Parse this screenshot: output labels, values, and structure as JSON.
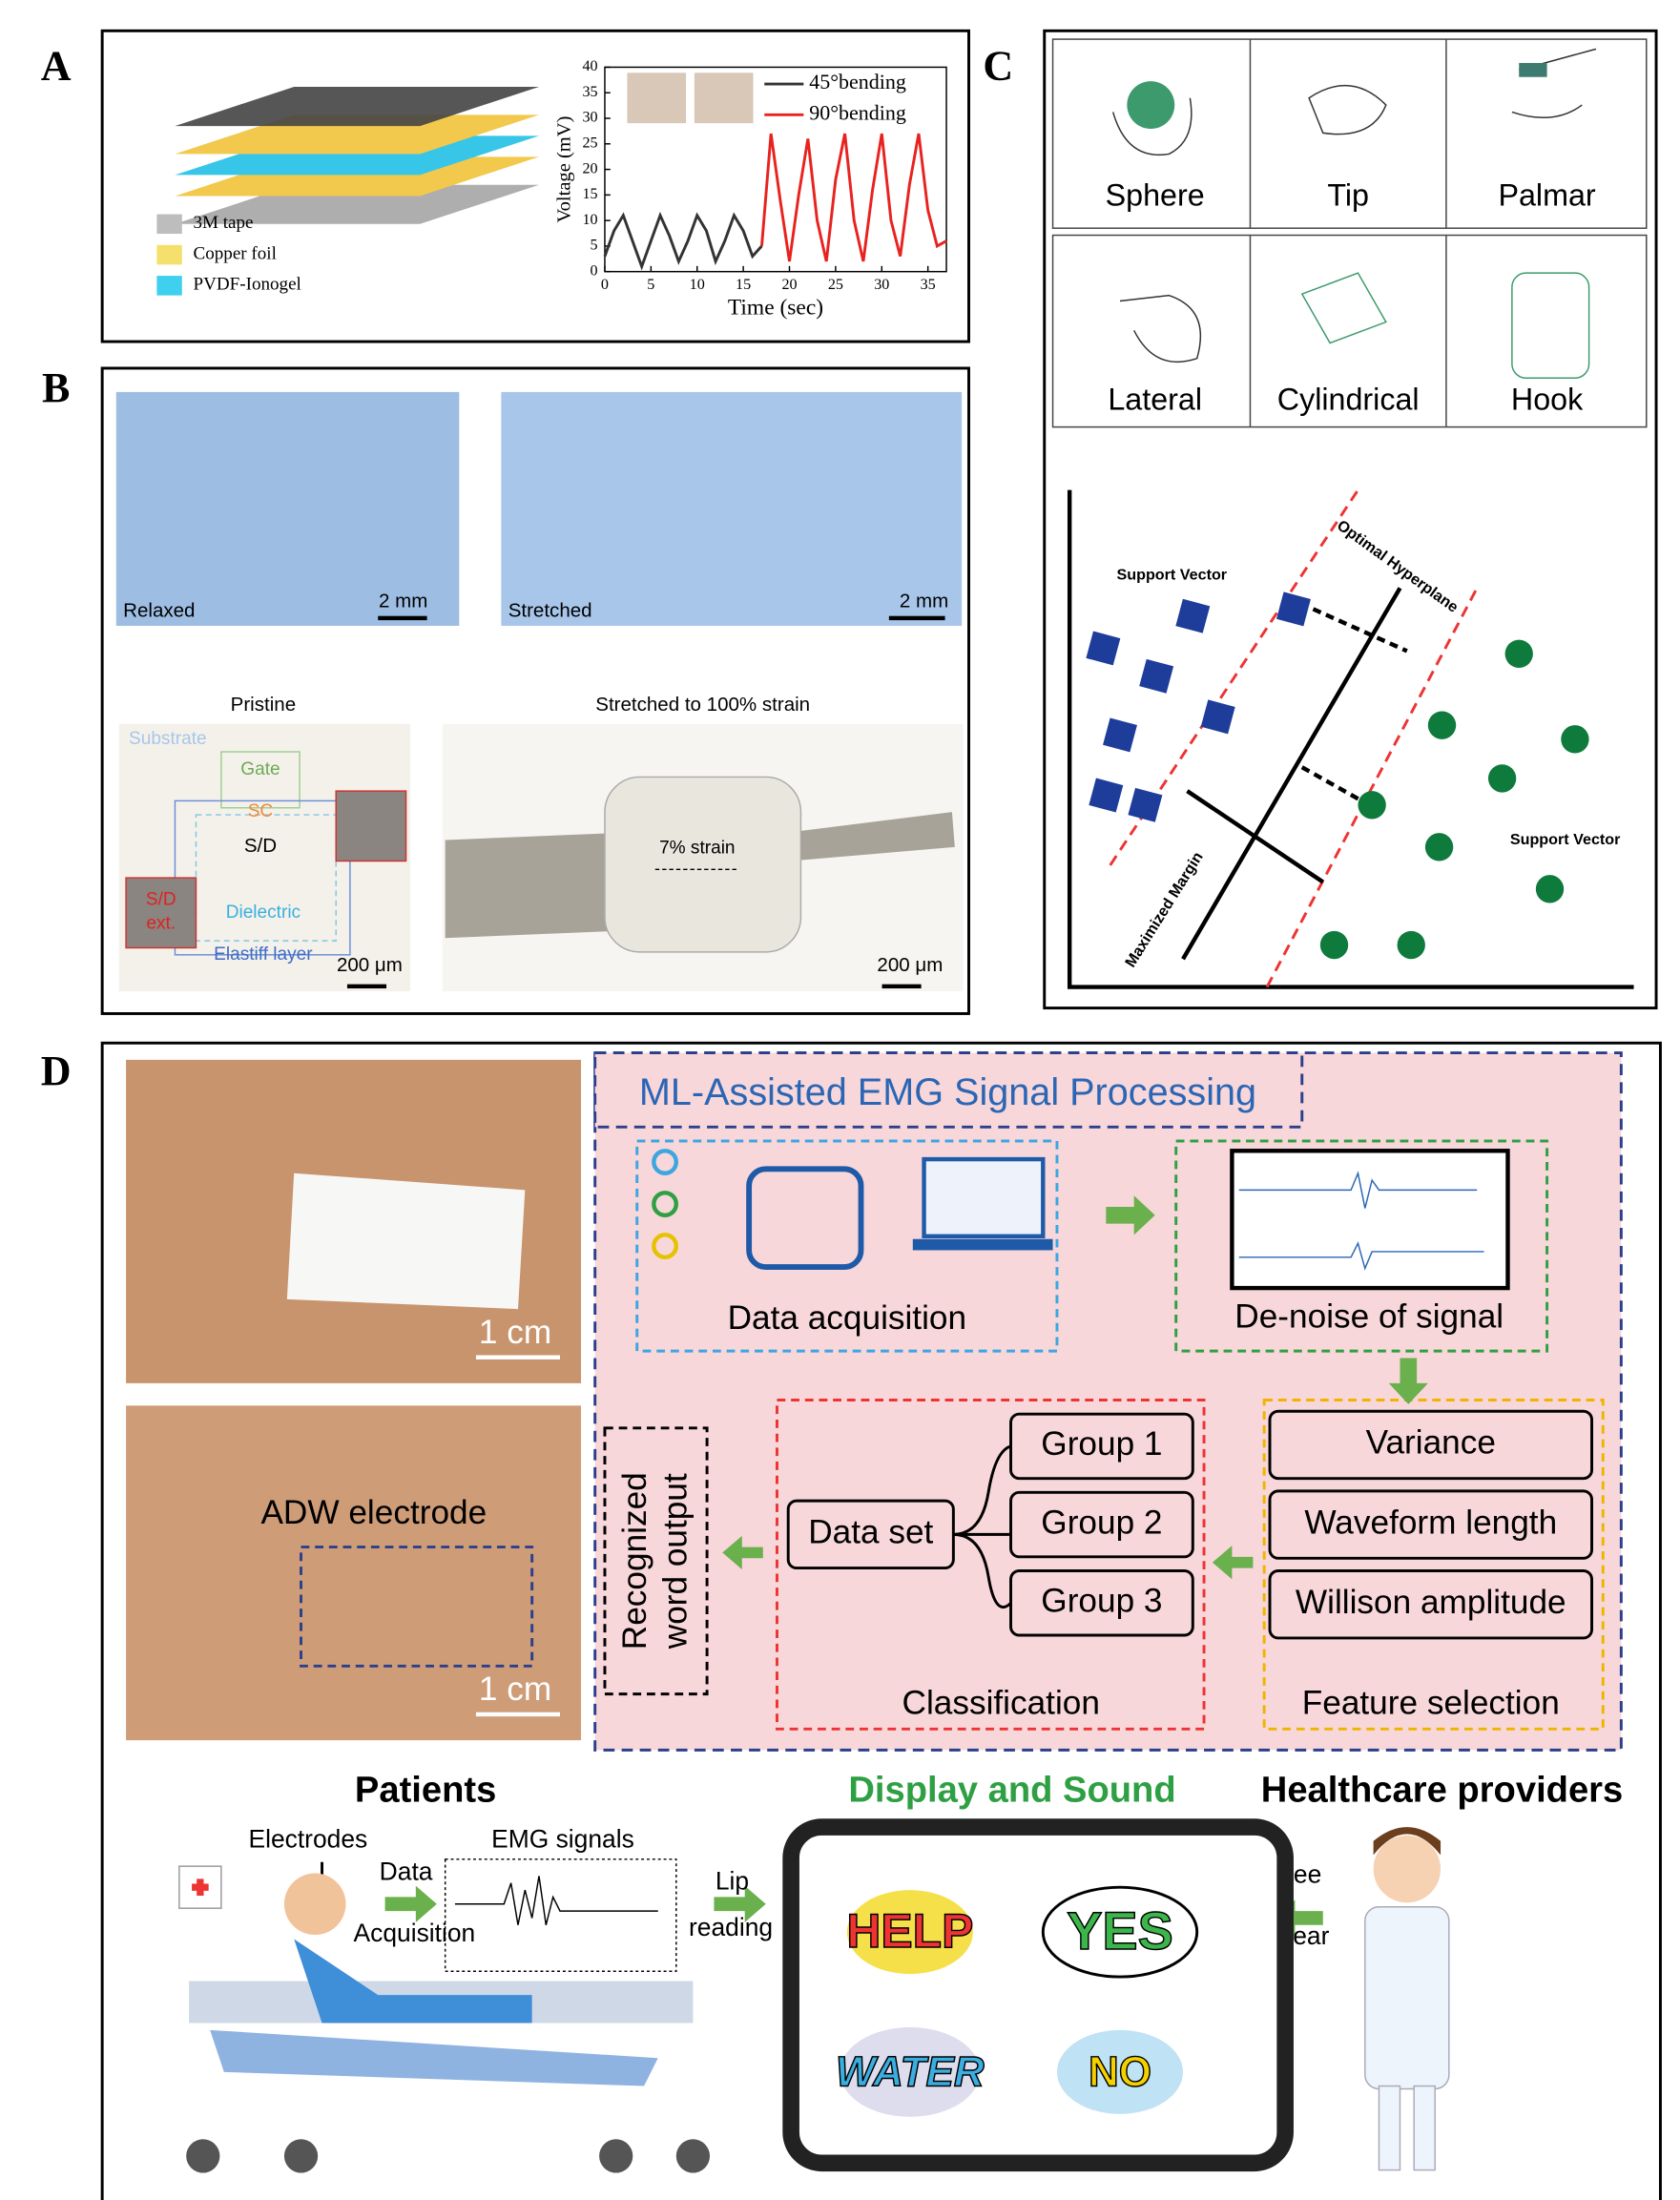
{
  "panel_labels": [
    "A",
    "B",
    "C",
    "D"
  ],
  "panel_a": {
    "legend": [
      "3M tape",
      "Copper foil",
      "PVDF-Ionogel"
    ]
  },
  "chart_data": {
    "type": "line",
    "x_label": "Time (sec)",
    "y_label": "Voltage (mV)",
    "x": [
      0,
      1,
      2,
      3,
      4,
      5,
      6,
      7,
      8,
      9,
      10,
      11,
      12,
      13,
      14,
      15,
      16,
      17,
      18,
      19,
      20,
      21,
      22,
      23,
      24,
      25,
      26,
      27,
      28,
      29,
      30,
      31,
      32,
      33,
      34,
      35,
      36,
      37
    ],
    "series": [
      {
        "name": "45°bending",
        "color": "#333333",
        "values": [
          3,
          8,
          11,
          6,
          1,
          6,
          11,
          7,
          2,
          6,
          11,
          8,
          2,
          6,
          11,
          8,
          3,
          5,
          null,
          null,
          null,
          null,
          null,
          null,
          null,
          null,
          null,
          null,
          null,
          null,
          null,
          null,
          null,
          null,
          null,
          null,
          null,
          null
        ]
      },
      {
        "name": "90°bending",
        "color": "#e8231f",
        "values": [
          null,
          null,
          null,
          null,
          null,
          null,
          null,
          null,
          null,
          null,
          null,
          null,
          null,
          null,
          null,
          null,
          null,
          5,
          27,
          14,
          2,
          15,
          26,
          10,
          2,
          18,
          27,
          10,
          2,
          16,
          27,
          10,
          3,
          17,
          27,
          12,
          5,
          6
        ]
      }
    ],
    "xlim": [
      0,
      37
    ],
    "ylim": [
      0,
      40
    ],
    "xticks": [
      0,
      5,
      10,
      15,
      20,
      25,
      30,
      35
    ],
    "yticks": [
      0,
      5,
      10,
      15,
      20,
      25,
      30,
      35,
      40
    ],
    "grid": false,
    "legend": "upper right"
  },
  "panel_b": {
    "relaxed": "Relaxed",
    "stretched": "Stretched",
    "scale_top": [
      "2 mm",
      "2 mm"
    ],
    "pristine": "Pristine",
    "stretched_strain": "Stretched to 100% strain",
    "layers": [
      "Substrate",
      "Gate",
      "SC",
      "S/D",
      "Dielectric",
      "Elastiff layer"
    ],
    "sd_ext": [
      "S/D",
      "ext."
    ],
    "strain": "7% strain",
    "scale_bottom": [
      "200 μm",
      "200 μm"
    ]
  },
  "panel_c": {
    "grasps": [
      "Sphere",
      "Tip",
      "Palmar",
      "Lateral",
      "Cylindrical",
      "Hook"
    ],
    "support_vector": [
      "Support Vector",
      "Support Vector"
    ],
    "hyperplane": "Optimal Hyperplane",
    "margin": "Maximized Margin"
  },
  "panel_d": {
    "scale": [
      "1 cm",
      "1 cm"
    ],
    "electrode": "ADW electrode",
    "title": "ML-Assisted EMG Signal Processing",
    "acquisition": "Data acquisition",
    "denoise": "De-noise of signal",
    "features": [
      "Variance",
      "Waveform length",
      "Willison amplitude"
    ],
    "feature_selection": "Feature selection",
    "data_set": "Data set",
    "groups": [
      "Group 1",
      "Group 2",
      "Group 3"
    ],
    "classification": "Classification",
    "output": [
      "Recognized",
      "word output"
    ],
    "patients": "Patients",
    "display": "Display and Sound",
    "providers": "Healthcare providers",
    "electrodes": "Electrodes",
    "emg": "EMG signals",
    "data_acq": [
      "Data",
      "Acquisition"
    ],
    "lip": [
      "Lip",
      "reading"
    ],
    "see_hear": [
      "See",
      "Hear"
    ],
    "words": [
      "HELP",
      "YES",
      "WATER",
      "NO"
    ]
  }
}
